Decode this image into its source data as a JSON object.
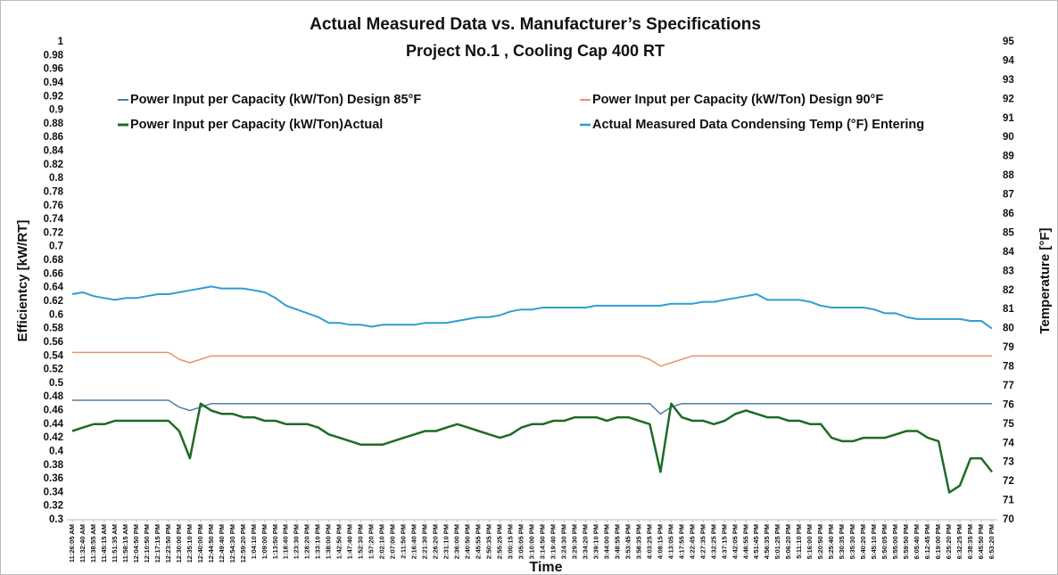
{
  "chart_data": {
    "type": "line",
    "title": "Actual Measured Data vs. Manufacturer’s Specifications",
    "subtitle": "Project No.1 , Cooling Cap 400 RT",
    "x_label": "Time",
    "y_label": "Efficientcy [kW/RT]",
    "y2_label": "Temperature [°F]",
    "legend": "top",
    "categories": [
      "11:26:05 AM",
      "11:32:40 AM",
      "11:38:55 AM",
      "11:45:15 AM",
      "11:51:35 AM",
      "11:58:15 AM",
      "12:04:50 PM",
      "12:10:50 PM",
      "12:17:15 PM",
      "12:23:50 PM",
      "12:30:00 PM",
      "12:35:10 PM",
      "12:40:00 PM",
      "12:44:50 PM",
      "12:49:40 PM",
      "12:54:30 PM",
      "12:59:20 PM",
      "1:04:10 PM",
      "1:09:00 PM",
      "1:13:50 PM",
      "1:18:40 PM",
      "1:23:30 PM",
      "1:28:20 PM",
      "1:33:10 PM",
      "1:38:00 PM",
      "1:42:50 PM",
      "1:47:40 PM",
      "1:52:30 PM",
      "1:57:20 PM",
      "2:02:10 PM",
      "2:07:00 PM",
      "2:11:50 PM",
      "2:16:40 PM",
      "2:21:30 PM",
      "2:26:20 PM",
      "2:31:10 PM",
      "2:36:00 PM",
      "2:40:50 PM",
      "2:45:55 PM",
      "2:50:35 PM",
      "2:55:25 PM",
      "3:00:15 PM",
      "3:05:05 PM",
      "3:10:00 PM",
      "3:14:50 PM",
      "3:19:40 PM",
      "3:24:30 PM",
      "3:29:30 PM",
      "3:34:20 PM",
      "3:39:10 PM",
      "3:44:00 PM",
      "3:48:55 PM",
      "3:53:45 PM",
      "3:58:35 PM",
      "4:03:25 PM",
      "4:08:15 PM",
      "4:13:05 PM",
      "4:17:55 PM",
      "4:22:45 PM",
      "4:27:35 PM",
      "4:32:25 PM",
      "4:37:15 PM",
      "4:42:05 PM",
      "4:46:55 PM",
      "4:51:45 PM",
      "4:56:35 PM",
      "5:01:25 PM",
      "5:06:20 PM",
      "5:11:10 PM",
      "5:16:00 PM",
      "5:20:50 PM",
      "5:25:40 PM",
      "5:30:35 PM",
      "5:35:30 PM",
      "5:40:20 PM",
      "5:45:10 PM",
      "5:50:05 PM",
      "5:55:00 PM",
      "5:59:50 PM",
      "6:05:40 PM",
      "6:12:45 PM",
      "6:19:00 PM",
      "6:25:20 PM",
      "6:32:25 PM",
      "6:38:35 PM",
      "6:45:50 PM",
      "6:53:20 PM"
    ],
    "series": [
      {
        "name": "Power Input per Capacity (kW/Ton) Design 85°F",
        "color": "#4f7fa6",
        "width": 1.5,
        "values": [
          0.475,
          0.475,
          0.475,
          0.475,
          0.475,
          0.475,
          0.475,
          0.475,
          0.475,
          0.475,
          0.465,
          0.46,
          0.465,
          0.47,
          0.47,
          0.47,
          0.47,
          0.47,
          0.47,
          0.47,
          0.47,
          0.47,
          0.47,
          0.47,
          0.47,
          0.47,
          0.47,
          0.47,
          0.47,
          0.47,
          0.47,
          0.47,
          0.47,
          0.47,
          0.47,
          0.47,
          0.47,
          0.47,
          0.47,
          0.47,
          0.47,
          0.47,
          0.47,
          0.47,
          0.47,
          0.47,
          0.47,
          0.47,
          0.47,
          0.47,
          0.47,
          0.47,
          0.47,
          0.47,
          0.47,
          0.455,
          0.465,
          0.47,
          0.47,
          0.47,
          0.47,
          0.47,
          0.47,
          0.47,
          0.47,
          0.47,
          0.47,
          0.47,
          0.47,
          0.47,
          0.47,
          0.47,
          0.47,
          0.47,
          0.47,
          0.47,
          0.47,
          0.47,
          0.47,
          0.47,
          0.47,
          0.47,
          0.47,
          0.47,
          0.47,
          0.47,
          0.47
        ]
      },
      {
        "name": "Power Input per Capacity (kW/Ton) Design 90°F",
        "color": "#e9946a",
        "width": 1.5,
        "values": [
          0.545,
          0.545,
          0.545,
          0.545,
          0.545,
          0.545,
          0.545,
          0.545,
          0.545,
          0.545,
          0.535,
          0.53,
          0.535,
          0.54,
          0.54,
          0.54,
          0.54,
          0.54,
          0.54,
          0.54,
          0.54,
          0.54,
          0.54,
          0.54,
          0.54,
          0.54,
          0.54,
          0.54,
          0.54,
          0.54,
          0.54,
          0.54,
          0.54,
          0.54,
          0.54,
          0.54,
          0.54,
          0.54,
          0.54,
          0.54,
          0.54,
          0.54,
          0.54,
          0.54,
          0.54,
          0.54,
          0.54,
          0.54,
          0.54,
          0.54,
          0.54,
          0.54,
          0.54,
          0.54,
          0.535,
          0.525,
          0.53,
          0.535,
          0.54,
          0.54,
          0.54,
          0.54,
          0.54,
          0.54,
          0.54,
          0.54,
          0.54,
          0.54,
          0.54,
          0.54,
          0.54,
          0.54,
          0.54,
          0.54,
          0.54,
          0.54,
          0.54,
          0.54,
          0.54,
          0.54,
          0.54,
          0.54,
          0.54,
          0.54,
          0.54,
          0.54,
          0.54
        ]
      },
      {
        "name": "Power Input per Capacity (kW/Ton)Actual",
        "color": "#1e6b25",
        "width": 2.5,
        "values": [
          0.43,
          0.435,
          0.44,
          0.44,
          0.445,
          0.445,
          0.445,
          0.445,
          0.445,
          0.445,
          0.43,
          0.39,
          0.47,
          0.46,
          0.455,
          0.455,
          0.45,
          0.45,
          0.445,
          0.445,
          0.44,
          0.44,
          0.44,
          0.435,
          0.425,
          0.42,
          0.415,
          0.41,
          0.41,
          0.41,
          0.415,
          0.42,
          0.425,
          0.43,
          0.43,
          0.435,
          0.44,
          0.435,
          0.43,
          0.425,
          0.42,
          0.425,
          0.435,
          0.44,
          0.44,
          0.445,
          0.445,
          0.45,
          0.45,
          0.45,
          0.445,
          0.45,
          0.45,
          0.445,
          0.44,
          0.37,
          0.47,
          0.45,
          0.445,
          0.445,
          0.44,
          0.445,
          0.455,
          0.46,
          0.455,
          0.45,
          0.45,
          0.445,
          0.445,
          0.44,
          0.44,
          0.42,
          0.415,
          0.415,
          0.42,
          0.42,
          0.42,
          0.425,
          0.43,
          0.43,
          0.42,
          0.415,
          0.34,
          0.35,
          0.39,
          0.39,
          0.37
        ]
      },
      {
        "name": "Actual Measured Data Condensing Temp (°F) Entering",
        "color": "#2e9fcf",
        "width": 2,
        "axis": "y2",
        "values": [
          81.8,
          81.9,
          81.7,
          81.6,
          81.5,
          81.6,
          81.6,
          81.7,
          81.8,
          81.8,
          81.9,
          82.0,
          82.1,
          82.2,
          82.1,
          82.1,
          82.1,
          82.0,
          81.9,
          81.6,
          81.2,
          81.0,
          80.8,
          80.6,
          80.3,
          80.3,
          80.2,
          80.2,
          80.1,
          80.2,
          80.2,
          80.2,
          80.2,
          80.3,
          80.3,
          80.3,
          80.4,
          80.5,
          80.6,
          80.6,
          80.7,
          80.9,
          81.0,
          81.0,
          81.1,
          81.1,
          81.1,
          81.1,
          81.1,
          81.2,
          81.2,
          81.2,
          81.2,
          81.2,
          81.2,
          81.2,
          81.3,
          81.3,
          81.3,
          81.4,
          81.4,
          81.5,
          81.6,
          81.7,
          81.8,
          81.5,
          81.5,
          81.5,
          81.5,
          81.4,
          81.2,
          81.1,
          81.1,
          81.1,
          81.1,
          81.0,
          80.8,
          80.8,
          80.6,
          80.5,
          80.5,
          80.5,
          80.5,
          80.5,
          80.4,
          80.4,
          80.0
        ]
      }
    ],
    "ylim": [
      0.3,
      1
    ],
    "yticks": [
      0.3,
      0.32,
      0.34,
      0.36,
      0.38,
      0.4,
      0.42,
      0.44,
      0.46,
      0.48,
      0.5,
      0.52,
      0.54,
      0.56,
      0.58,
      0.6,
      0.62,
      0.64,
      0.66,
      0.68,
      0.7,
      0.72,
      0.74,
      0.76,
      0.78,
      0.8,
      0.82,
      0.84,
      0.86,
      0.88,
      0.9,
      0.92,
      0.94,
      0.96,
      0.98,
      1
    ],
    "y2lim": [
      70,
      95
    ],
    "y2ticks": [
      70,
      71,
      72,
      73,
      74,
      75,
      76,
      77,
      78,
      79,
      80,
      81,
      82,
      83,
      84,
      85,
      86,
      87,
      88,
      89,
      90,
      91,
      92,
      93,
      94,
      95
    ]
  }
}
